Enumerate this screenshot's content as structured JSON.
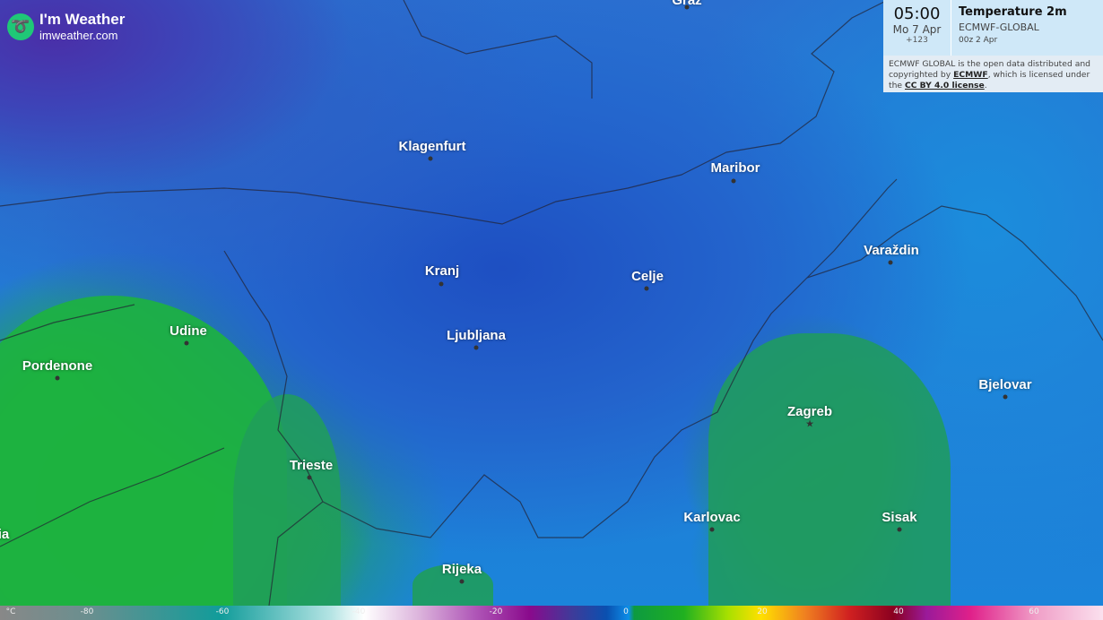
{
  "brand": {
    "name": "I'm Weather",
    "url": "imweather.com",
    "icon": "swirl-logo-icon"
  },
  "panel": {
    "time": "05:00",
    "date": "Mo 7 Apr",
    "offset": "+123",
    "parameter": "Temperature 2m",
    "model": "ECMWF-GLOBAL",
    "run": "00z 2 Apr",
    "license_pre": "ECMWF GLOBAL is the open data distributed and copyrighted by ",
    "license_link1": "ECMWF",
    "license_mid": ", which is licensed under the ",
    "license_link2": "CC BY 4.0 license",
    "license_post": "."
  },
  "cities": [
    {
      "name": "Graz",
      "marker": "dot"
    },
    {
      "name": "Klagenfurt",
      "marker": "dot"
    },
    {
      "name": "Maribor",
      "marker": "dot"
    },
    {
      "name": "Varaždin",
      "marker": "dot"
    },
    {
      "name": "Kranj",
      "marker": "dot"
    },
    {
      "name": "Celje",
      "marker": "dot"
    },
    {
      "name": "Udine",
      "marker": "dot"
    },
    {
      "name": "Ljubljana",
      "marker": "dot"
    },
    {
      "name": "Pordenone",
      "marker": "dot"
    },
    {
      "name": "Bjelovar",
      "marker": "dot"
    },
    {
      "name": "Zagreb",
      "marker": "star"
    },
    {
      "name": "Trieste",
      "marker": "dot"
    },
    {
      "name": "Karlovac",
      "marker": "dot"
    },
    {
      "name": "Sisak",
      "marker": "dot"
    },
    {
      "name": "Rijeka",
      "marker": "dot"
    },
    {
      "name": "ia",
      "marker": "none"
    }
  ],
  "scale": {
    "unit": "°C",
    "ticks": [
      "-80",
      "-60",
      "-40",
      "-20",
      "0",
      "20",
      "40",
      "60"
    ]
  }
}
